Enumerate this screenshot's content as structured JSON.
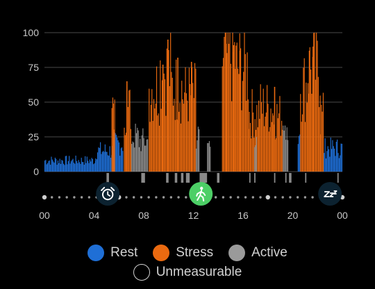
{
  "chart_data": {
    "type": "bar",
    "title": "",
    "xlabel": "",
    "ylabel": "",
    "ylim": [
      0,
      100
    ],
    "y_ticks": [
      "0",
      "25",
      "50",
      "75",
      "100"
    ],
    "x_ticks": [
      "00",
      "04",
      "08",
      "12",
      "16",
      "20",
      "00"
    ],
    "x_range_hours": [
      0,
      24
    ],
    "grid": true,
    "series": [
      {
        "name": "Rest",
        "color": "#1f6fd6",
        "segments": [
          {
            "start_hour": 0.0,
            "end_hour": 4.1,
            "level": 8
          },
          {
            "start_hour": 4.1,
            "end_hour": 5.6,
            "level": 15
          },
          {
            "start_hour": 5.6,
            "end_hour": 6.3,
            "level": 20
          },
          {
            "start_hour": 20.4,
            "end_hour": 20.6,
            "level": 22
          },
          {
            "start_hour": 22.5,
            "end_hour": 24.0,
            "level": 17
          }
        ]
      },
      {
        "name": "Stress",
        "color": "#ea6a10",
        "segments": [
          {
            "start_hour": 5.4,
            "end_hour": 5.7,
            "level": 40
          },
          {
            "start_hour": 6.4,
            "end_hour": 7.0,
            "level": 45
          },
          {
            "start_hour": 8.4,
            "end_hour": 9.3,
            "level": 60
          },
          {
            "start_hour": 9.3,
            "end_hour": 10.2,
            "level": 72
          },
          {
            "start_hour": 10.2,
            "end_hour": 11.1,
            "level": 60
          },
          {
            "start_hour": 11.1,
            "end_hour": 12.2,
            "level": 55
          },
          {
            "start_hour": 14.3,
            "end_hour": 15.4,
            "level": 82
          },
          {
            "start_hour": 15.4,
            "end_hour": 16.4,
            "level": 74
          },
          {
            "start_hour": 16.4,
            "end_hour": 17.3,
            "level": 42
          },
          {
            "start_hour": 17.3,
            "end_hour": 18.4,
            "level": 46
          },
          {
            "start_hour": 18.4,
            "end_hour": 19.2,
            "level": 40
          },
          {
            "start_hour": 20.6,
            "end_hour": 21.2,
            "level": 62
          },
          {
            "start_hour": 21.2,
            "end_hour": 22.2,
            "level": 74
          },
          {
            "start_hour": 22.2,
            "end_hour": 22.5,
            "level": 40
          }
        ],
        "peaks": [
          {
            "hour": 5.5,
            "value": 49
          },
          {
            "hour": 6.6,
            "value": 65
          },
          {
            "hour": 9.5,
            "value": 77
          },
          {
            "hour": 9.9,
            "value": 95
          },
          {
            "hour": 10.7,
            "value": 82
          },
          {
            "hour": 11.8,
            "value": 79
          },
          {
            "hour": 14.6,
            "value": 92
          },
          {
            "hour": 15.2,
            "value": 91
          },
          {
            "hour": 15.7,
            "value": 87
          },
          {
            "hour": 18.5,
            "value": 61
          },
          {
            "hour": 21.3,
            "value": 87
          },
          {
            "hour": 21.6,
            "value": 90
          }
        ]
      },
      {
        "name": "Active",
        "color": "#8c8c8c",
        "segments": [
          {
            "start_hour": 7.0,
            "end_hour": 7.6,
            "level": 25
          },
          {
            "start_hour": 7.6,
            "end_hour": 8.3,
            "level": 22
          },
          {
            "start_hour": 12.2,
            "end_hour": 12.5,
            "level": 25
          },
          {
            "start_hour": 13.1,
            "end_hour": 13.4,
            "level": 20
          },
          {
            "start_hour": 16.9,
            "end_hour": 17.1,
            "level": 28
          },
          {
            "start_hour": 19.2,
            "end_hour": 19.6,
            "level": 24
          }
        ]
      },
      {
        "name": "Unmeasurable",
        "color": "#000000",
        "segments": []
      }
    ],
    "activity_band": [
      {
        "start_hour": 5.0,
        "end_hour": 5.2
      },
      {
        "start_hour": 7.8,
        "end_hour": 8.1
      },
      {
        "start_hour": 9.8,
        "end_hour": 10.0
      },
      {
        "start_hour": 10.5,
        "end_hour": 10.7
      },
      {
        "start_hour": 11.0,
        "end_hour": 11.2
      },
      {
        "start_hour": 11.4,
        "end_hour": 11.7
      },
      {
        "start_hour": 12.5,
        "end_hour": 13.1
      },
      {
        "start_hour": 13.9,
        "end_hour": 14.1
      },
      {
        "start_hour": 16.5,
        "end_hour": 16.6
      },
      {
        "start_hour": 16.9,
        "end_hour": 17.0
      },
      {
        "start_hour": 18.5,
        "end_hour": 18.6
      },
      {
        "start_hour": 19.4,
        "end_hour": 19.5
      },
      {
        "start_hour": 19.7,
        "end_hour": 19.9
      },
      {
        "start_hour": 21.0,
        "end_hour": 21.1
      },
      {
        "start_hour": 23.6,
        "end_hour": 23.7
      }
    ],
    "timeline_markers": [
      {
        "icon": "alarm-clock-icon",
        "hour": 5.1,
        "color": "#0c2230"
      },
      {
        "icon": "walking-person-icon",
        "hour": 12.6,
        "color": "#4ccf66"
      },
      {
        "icon": "sleep-zzz-icon",
        "hour": 23.0,
        "color": "#0c2230"
      }
    ]
  },
  "legend": {
    "items": [
      {
        "name": "Rest",
        "color": "#1f6fd6"
      },
      {
        "name": "Stress",
        "color": "#ea6a10"
      },
      {
        "name": "Active",
        "color": "#9a9a9a"
      }
    ],
    "unmeasurable_label": "Unmeasurable"
  },
  "colors": {
    "background": "#000000",
    "gridline": "#4a4a4a",
    "axis_text": "#c8c8c8"
  }
}
